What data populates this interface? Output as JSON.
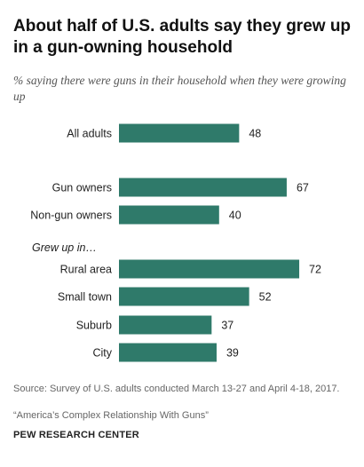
{
  "title": "About half of U.S. adults say they grew up in a gun-owning household",
  "subtitle": "% saying there were guns in their household when they were growing up",
  "source": "Source: Survey of U.S. adults conducted March 13-27 and April 4-18, 2017.",
  "note": "“America’s Complex Relationship With Guns”",
  "credit": "PEW RESEARCH CENTER",
  "colors": {
    "bar": "#2f7a6a"
  },
  "chart_data": {
    "type": "bar",
    "orientation": "horizontal",
    "group_label": "Grew up in…",
    "categories": [
      "All adults",
      "Gun owners",
      "Non-gun owners",
      "Rural area",
      "Small town",
      "Suburb",
      "City"
    ],
    "values": [
      48,
      67,
      40,
      72,
      52,
      37,
      39
    ],
    "xlim": [
      0,
      100
    ],
    "grid": false,
    "legend": "none"
  }
}
